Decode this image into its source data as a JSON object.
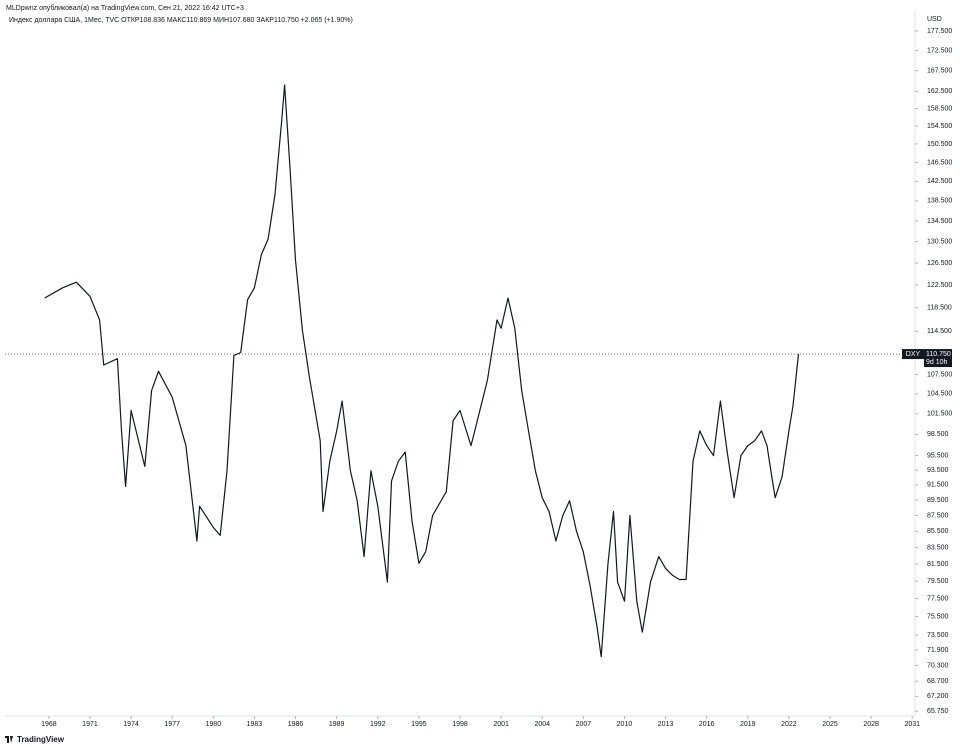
{
  "chart_data": {
    "type": "line",
    "title": "MLDpwnz опубликовал(а) на TradingView.com, Сен 21, 2022 16:42 UTC+3",
    "subtitle": "Индекс доллара США, 1Мес, TVC  ОТКР108.836  МАКС110.869  МИН107.680  ЗАКР110.750  +2.065 (+1.90%)",
    "y_unit": "USD",
    "log_scale": true,
    "grid": false,
    "series": [
      {
        "color": "#131722",
        "x": [
          1967.7,
          1969,
          1970,
          1971,
          1971.7,
          1972,
          1973,
          1973.3,
          1973.6,
          1974,
          1975,
          1975.5,
          1976,
          1977,
          1978,
          1978.8,
          1979,
          1980,
          1980.5,
          1981,
          1981.5,
          1982,
          1982.5,
          1983,
          1983.5,
          1984,
          1984.5,
          1985,
          1985.2,
          1985.6,
          1986,
          1986.5,
          1987,
          1987.8,
          1988,
          1988.5,
          1989,
          1989.4,
          1990,
          1990.5,
          1991,
          1991.5,
          1992,
          1992.7,
          1993,
          1993.5,
          1994,
          1994.5,
          1995,
          1995.5,
          1996,
          1997,
          1997.5,
          1998,
          1998.8,
          1999,
          2000,
          2000.7,
          2001,
          2001.5,
          2002,
          2002.5,
          2003,
          2003.5,
          2004,
          2004.5,
          2005,
          2005.5,
          2006,
          2006.5,
          2007,
          2007.5,
          2008,
          2008.3,
          2008.8,
          2009.2,
          2009.5,
          2010,
          2010.4,
          2010.9,
          2011.3,
          2011.9,
          2012.5,
          2013,
          2013.5,
          2014,
          2014.5,
          2015,
          2015.5,
          2016,
          2016.5,
          2017,
          2017.5,
          2018,
          2018.5,
          2019,
          2019.5,
          2020,
          2020.4,
          2020.8,
          2021,
          2021.5,
          2022,
          2022.3,
          2022.7
        ],
        "values": [
          120.2,
          122,
          123,
          120.5,
          116.4,
          109,
          110,
          99,
          91.3,
          102,
          94,
          105,
          108,
          104,
          96.9,
          84.3,
          88.7,
          86,
          85,
          93.4,
          110.5,
          111,
          119.9,
          122,
          128,
          131,
          139.8,
          156,
          164,
          145,
          127,
          114.7,
          107.3,
          97.6,
          88,
          94.7,
          99,
          103.4,
          93.4,
          89.4,
          82.4,
          93.4,
          88.7,
          79.4,
          92,
          94.7,
          96,
          86.8,
          81.6,
          83,
          87.5,
          90.6,
          100.5,
          102,
          96.9,
          98.4,
          106.6,
          116.4,
          115,
          120.2,
          115,
          105,
          99,
          93.4,
          89.8,
          88,
          84.3,
          87.5,
          89.4,
          85.5,
          83,
          78.9,
          74.4,
          71.2,
          81.6,
          88,
          79.4,
          77.2,
          87.5,
          77.2,
          73.8,
          79.4,
          82.4,
          81,
          80.2,
          79.7,
          79.7,
          94.7,
          99,
          96.9,
          95.5,
          103.4,
          96,
          89.8,
          95.5,
          96.9,
          97.6,
          99,
          96.9,
          92,
          89.8,
          92.6,
          99,
          102.7,
          110.75
        ]
      }
    ],
    "symbol": "DXY",
    "last_price": {
      "value": 110.75,
      "label": "110.750"
    },
    "countdown": "9d 10h",
    "xlim": [
      1964.8,
      2031.2
    ],
    "xticks": [
      1968,
      1971,
      1974,
      1977,
      1980,
      1983,
      1986,
      1989,
      1992,
      1995,
      1998,
      2001,
      2004,
      2007,
      2010,
      2013,
      2016,
      2019,
      2022,
      2025,
      2028,
      2031
    ],
    "ylim": [
      65.3,
      183
    ],
    "yticks": [
      {
        "value": 177.5,
        "label": "177.500"
      },
      {
        "value": 172.5,
        "label": "172.500"
      },
      {
        "value": 167.5,
        "label": "167.500"
      },
      {
        "value": 162.5,
        "label": "162.500"
      },
      {
        "value": 158.5,
        "label": "158.500"
      },
      {
        "value": 154.5,
        "label": "154.500"
      },
      {
        "value": 150.5,
        "label": "150.500"
      },
      {
        "value": 146.5,
        "label": "146.500"
      },
      {
        "value": 142.5,
        "label": "142.500"
      },
      {
        "value": 138.5,
        "label": "138.500"
      },
      {
        "value": 134.5,
        "label": "134.500"
      },
      {
        "value": 130.5,
        "label": "130.500"
      },
      {
        "value": 126.5,
        "label": "126.500"
      },
      {
        "value": 122.5,
        "label": "122.500"
      },
      {
        "value": 118.5,
        "label": "118.500"
      },
      {
        "value": 114.5,
        "label": "114.500"
      },
      {
        "value": 107.5,
        "label": "107.500"
      },
      {
        "value": 104.5,
        "label": "104.500"
      },
      {
        "value": 101.5,
        "label": "101.500"
      },
      {
        "value": 98.5,
        "label": "98.500"
      },
      {
        "value": 95.5,
        "label": "95.500"
      },
      {
        "value": 93.5,
        "label": "93.500"
      },
      {
        "value": 91.5,
        "label": "91.500"
      },
      {
        "value": 89.5,
        "label": "89.500"
      },
      {
        "value": 87.5,
        "label": "87.500"
      },
      {
        "value": 85.5,
        "label": "85.500"
      },
      {
        "value": 83.5,
        "label": "83.500"
      },
      {
        "value": 81.5,
        "label": "81.500"
      },
      {
        "value": 79.5,
        "label": "79.500"
      },
      {
        "value": 77.5,
        "label": "77.500"
      },
      {
        "value": 75.5,
        "label": "75.500"
      },
      {
        "value": 73.5,
        "label": "73.500"
      },
      {
        "value": 71.9,
        "label": "71.900"
      },
      {
        "value": 70.3,
        "label": "70.300"
      },
      {
        "value": 68.7,
        "label": "68.700"
      },
      {
        "value": 67.2,
        "label": "67.200"
      },
      {
        "value": 65.75,
        "label": "65.750"
      }
    ]
  },
  "footer": {
    "brand": "TradingView"
  }
}
